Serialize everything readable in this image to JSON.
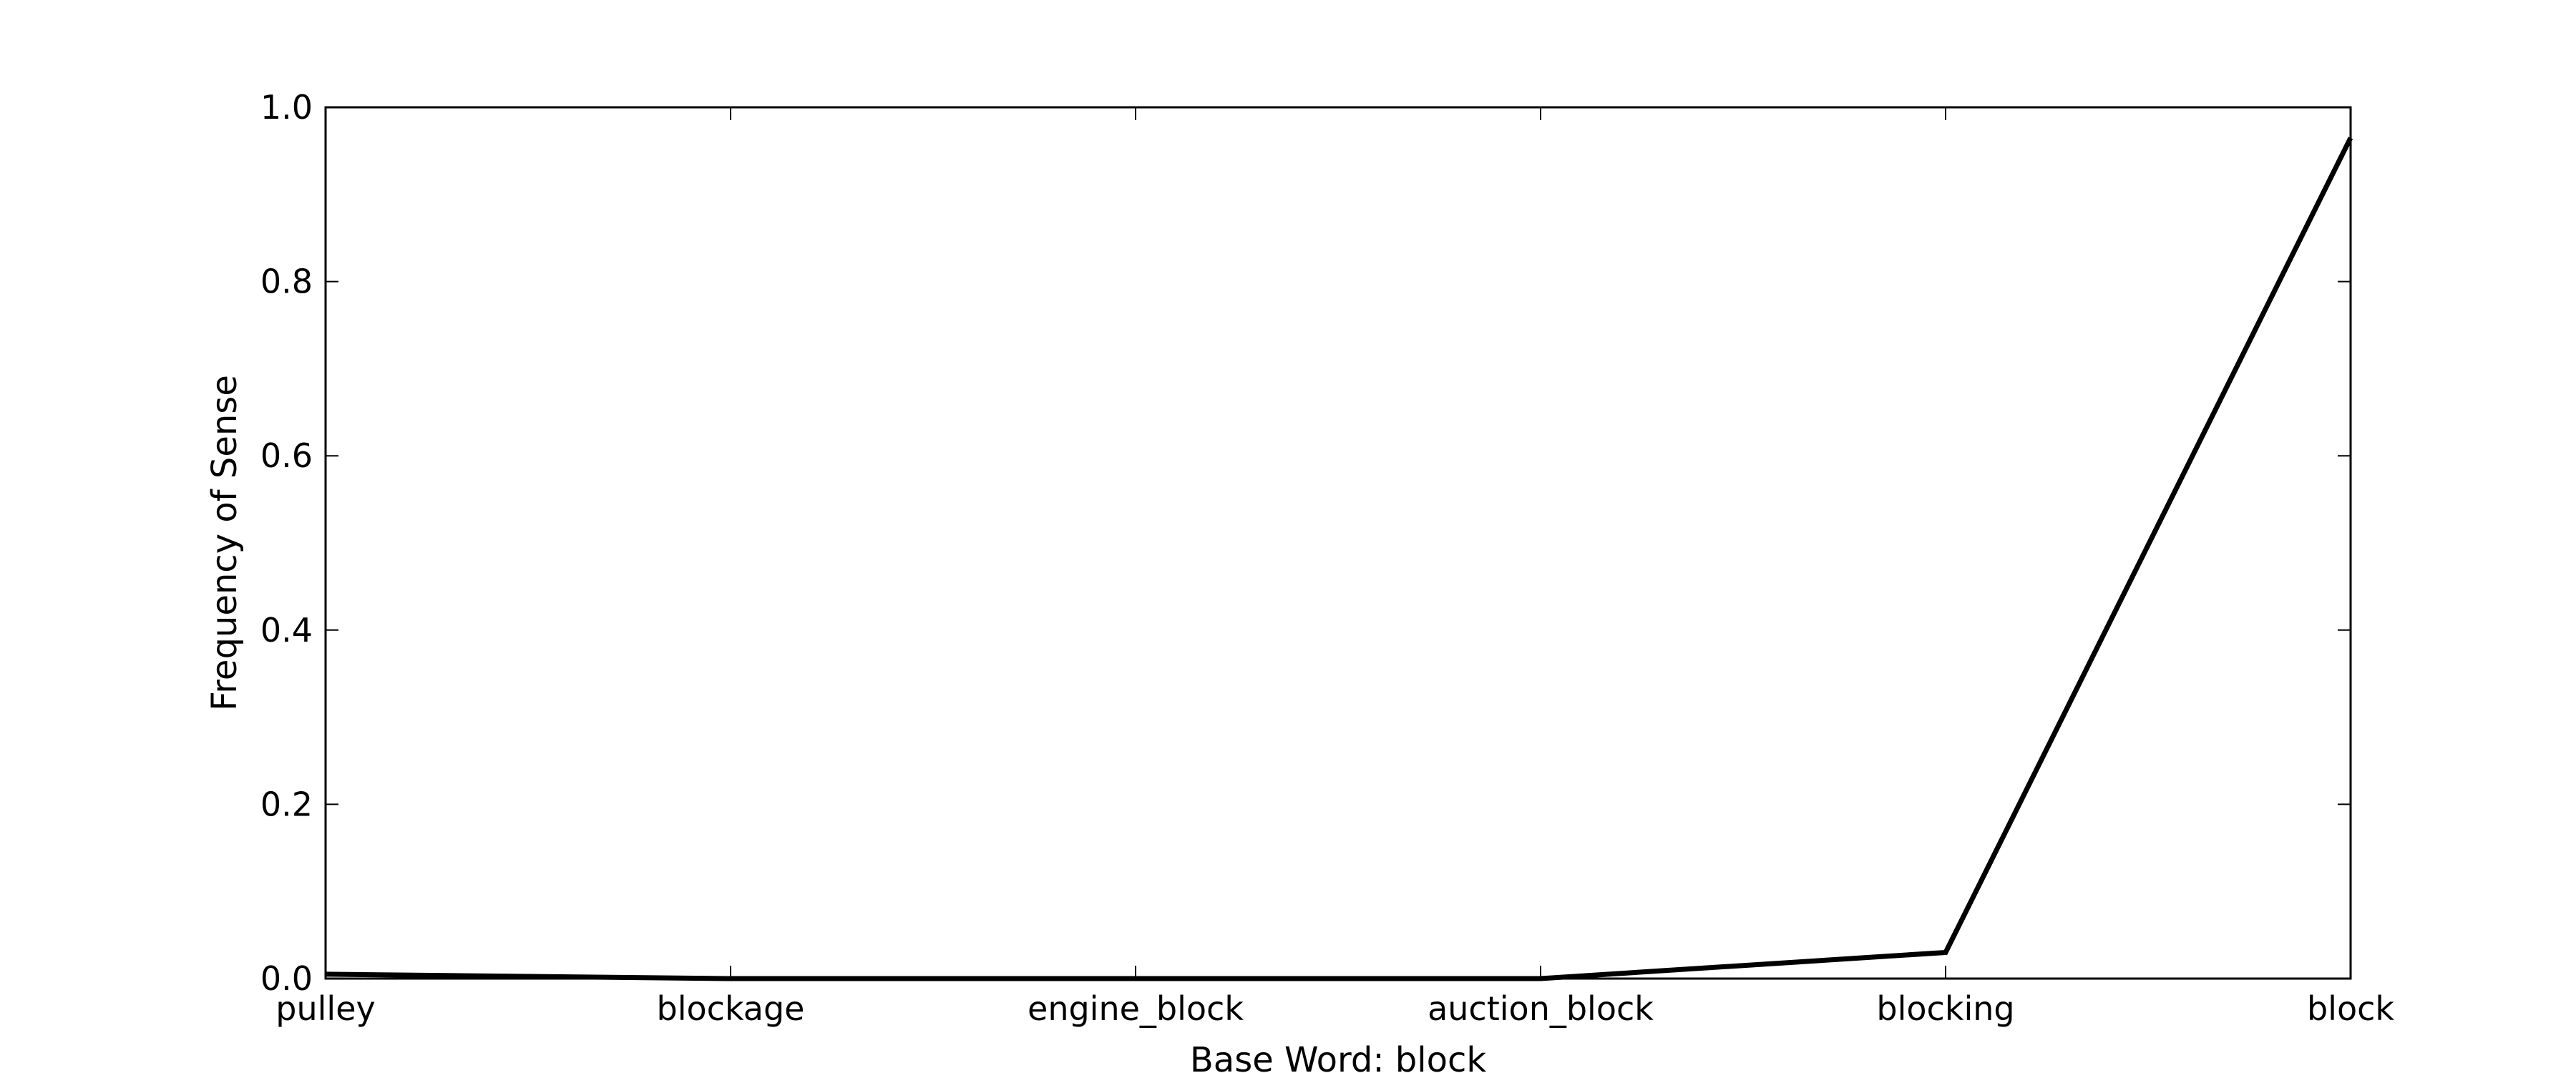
{
  "chart_data": {
    "type": "line",
    "title": "",
    "xlabel": "Base Word: block",
    "ylabel": "Frequency of Sense",
    "categories": [
      "pulley",
      "blockage",
      "engine_block",
      "auction_block",
      "blocking",
      "block"
    ],
    "series": [
      {
        "values": [
          0.005,
          0.0,
          0.0,
          0.0,
          0.03,
          0.965
        ]
      }
    ],
    "ylim": [
      0.0,
      1.0
    ],
    "yticks": [
      "0.0",
      "0.2",
      "0.4",
      "0.6",
      "0.8",
      "1.0"
    ],
    "grid": false,
    "legend": "none",
    "line_color": "#000000"
  }
}
